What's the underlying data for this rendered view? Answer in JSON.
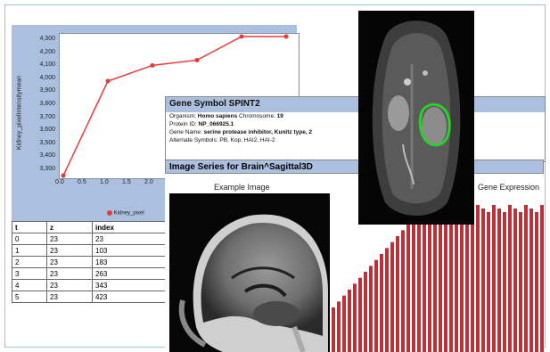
{
  "line_chart": {
    "y_axis_label": "Kidney_pixelIntensitymean",
    "y_ticks": [
      "4,300",
      "4,200",
      "4,100",
      "4,000",
      "3,900",
      "3,800",
      "3,700",
      "3,600",
      "3,500",
      "3,400",
      "3,300"
    ],
    "x_ticks": [
      "0.0",
      "0.5",
      "1.0",
      "1.5",
      "2.0"
    ],
    "legend_label": "Kidney_pixel",
    "series_color": "#e83a3a"
  },
  "chart_data": {
    "type": "line",
    "x": [
      0,
      1,
      2,
      3,
      4,
      5
    ],
    "values": [
      3270,
      3990,
      4110,
      4150,
      4330,
      4330
    ],
    "ylabel": "Kidney_pixelIntensitymean",
    "ylim": [
      3250,
      4350
    ],
    "grid": false
  },
  "table": {
    "headers": [
      "t",
      "z",
      "index"
    ],
    "rows": [
      [
        "0",
        "23",
        "23"
      ],
      [
        "1",
        "23",
        "103"
      ],
      [
        "2",
        "23",
        "183"
      ],
      [
        "3",
        "23",
        "263"
      ],
      [
        "4",
        "23",
        "343"
      ],
      [
        "5",
        "23",
        "423"
      ]
    ]
  },
  "gene_panel": {
    "title": "Gene Symbol SPINT2",
    "organism_label": "Organism:",
    "organism_value": "Homo sapiens",
    "chromosome_label": "Chromosome:",
    "chromosome_value": "19",
    "protein_label": "Protein ID:",
    "protein_value": "NP_066925.1",
    "gene_name_label": "Gene Name:",
    "gene_name_value": "serine protease inhibitor, Kunitz type, 2",
    "alt_label": "Alternate Symbols:",
    "alt_value": "PB, Kop, HAI2, HAI-2"
  },
  "series_header": "Image Series for Brain^Sagittal3D",
  "example_image_label": "Example Image",
  "gene_expression_label": "Gene Expression",
  "bar_color": "#b8323a"
}
